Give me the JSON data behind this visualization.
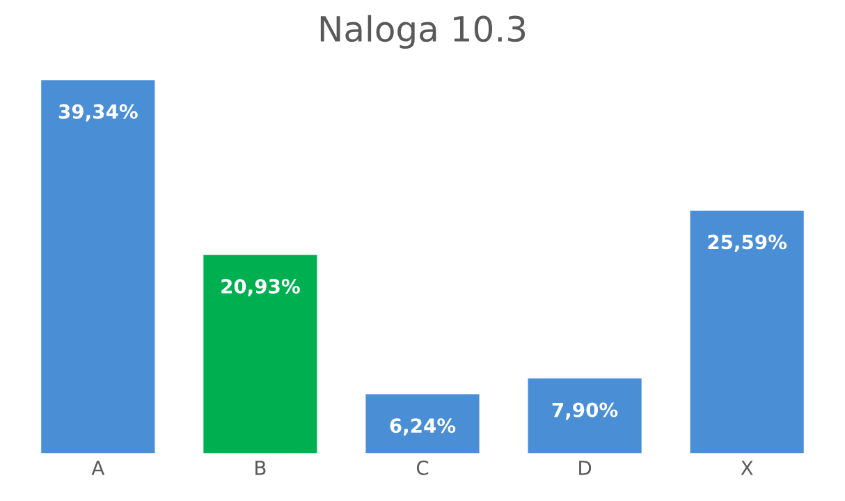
{
  "chart_data": {
    "type": "bar",
    "title": "Naloga 10.3",
    "categories": [
      "A",
      "B",
      "C",
      "D",
      "X"
    ],
    "values": [
      39.34,
      20.93,
      6.24,
      7.9,
      25.59
    ],
    "colors": [
      "#4a8ed6",
      "#00b050",
      "#4a8ed6",
      "#4a8ed6",
      "#4a8ed6"
    ],
    "value_labels": [
      "39,34%",
      "20,93%",
      "6,24%",
      "7,90%",
      "25,59%"
    ],
    "grid": false,
    "legend": false
  }
}
